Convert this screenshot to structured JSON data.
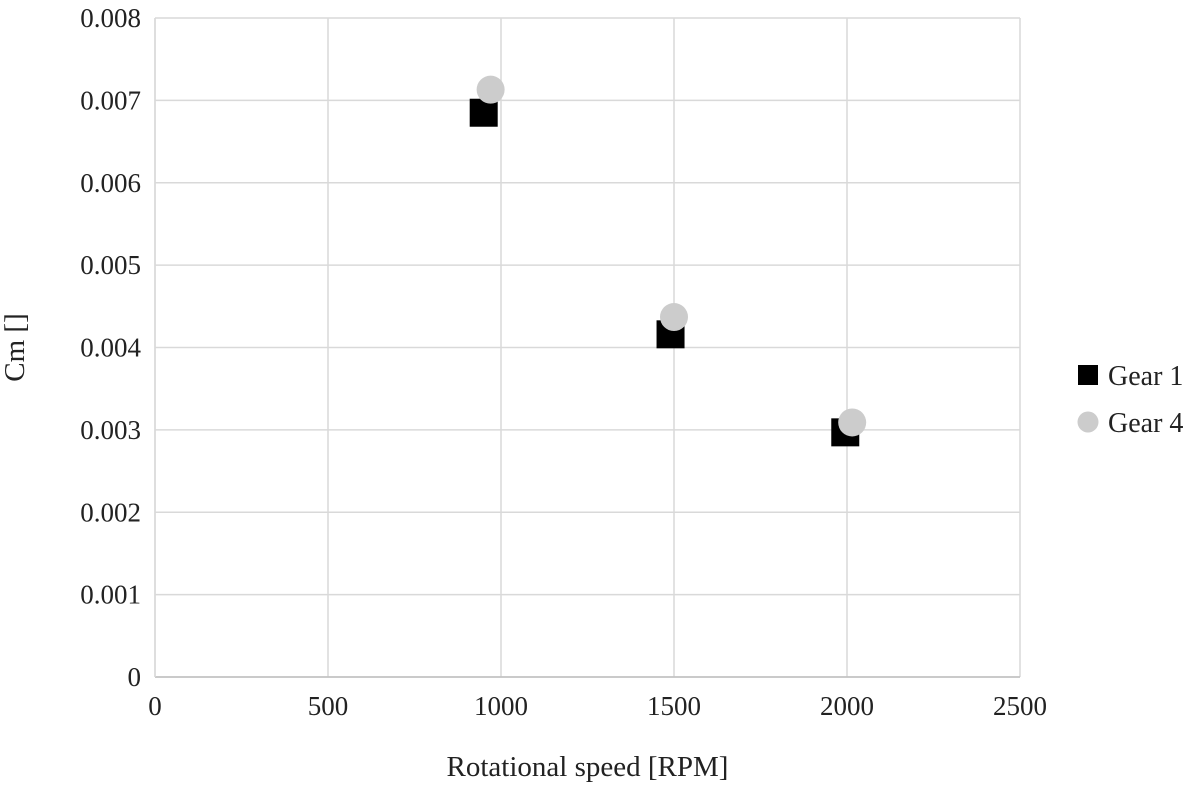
{
  "chart_data": {
    "type": "scatter",
    "title": "",
    "xlabel": "Rotational speed [RPM]",
    "ylabel": "Cm []",
    "xlim": [
      0,
      2500
    ],
    "ylim": [
      0,
      0.008
    ],
    "x_ticks": [
      "0",
      "500",
      "1000",
      "1500",
      "2000",
      "2500"
    ],
    "y_ticks": [
      "0",
      "0.001",
      "0.002",
      "0.003",
      "0.004",
      "0.005",
      "0.006",
      "0.007",
      "0.008"
    ],
    "grid": true,
    "legend_position": "right",
    "series": [
      {
        "name": "Gear 1",
        "marker": "square",
        "color": "#000000",
        "points": [
          {
            "x": 950,
            "y": 0.00685
          },
          {
            "x": 1490,
            "y": 0.00416
          },
          {
            "x": 1995,
            "y": 0.00297
          }
        ]
      },
      {
        "name": "Gear 4",
        "marker": "circle",
        "color": "#cccccc",
        "points": [
          {
            "x": 970,
            "y": 0.00713
          },
          {
            "x": 1500,
            "y": 0.00437
          },
          {
            "x": 2015,
            "y": 0.00309
          }
        ]
      }
    ]
  }
}
